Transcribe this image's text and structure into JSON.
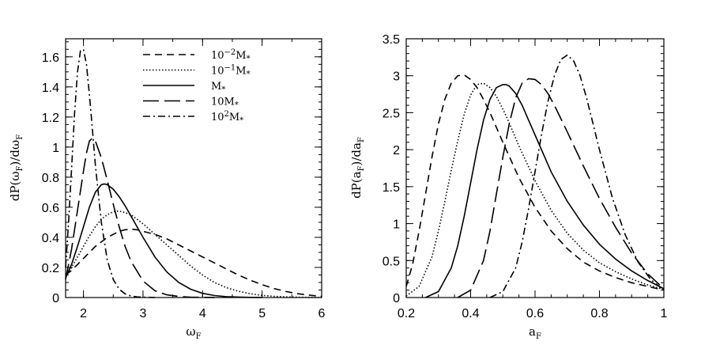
{
  "chart_data": [
    {
      "type": "line",
      "xlabel": "ω_F",
      "ylabel": "dP(ω_F)/dω_F",
      "xlim": [
        1.7,
        6
      ],
      "ylim": [
        0,
        1.72
      ],
      "xticks": [
        2,
        3,
        4,
        5,
        6
      ],
      "xtick_labels": [
        "2",
        "3",
        "4",
        "5",
        "6"
      ],
      "yticks": [
        0,
        0.2,
        0.4,
        0.6,
        0.8,
        1,
        1.2,
        1.4,
        1.6
      ],
      "ytick_labels": [
        "0",
        "0.2",
        "0.4",
        "0.6",
        "0.8",
        "1",
        "1.2",
        "1.4",
        "1.6"
      ],
      "legend_position": "top-right",
      "series": [
        {
          "name": "10⁻²M*",
          "style": "short-dash",
          "x": [
            1.7,
            1.8,
            1.9,
            2.0,
            2.1,
            2.2,
            2.3,
            2.4,
            2.5,
            2.6,
            2.7,
            2.8,
            2.9,
            3.0,
            3.2,
            3.4,
            3.6,
            3.8,
            4.0,
            4.2,
            4.4,
            4.6,
            4.8,
            5.0,
            5.2,
            5.4,
            5.6,
            5.8,
            6.0
          ],
          "values": [
            0.15,
            0.18,
            0.22,
            0.26,
            0.3,
            0.34,
            0.37,
            0.4,
            0.42,
            0.44,
            0.45,
            0.455,
            0.45,
            0.44,
            0.42,
            0.39,
            0.35,
            0.31,
            0.27,
            0.23,
            0.19,
            0.15,
            0.115,
            0.085,
            0.06,
            0.04,
            0.025,
            0.015,
            0.008
          ]
        },
        {
          "name": "10⁻¹M*",
          "style": "dotted",
          "x": [
            1.7,
            1.8,
            1.9,
            2.0,
            2.1,
            2.2,
            2.3,
            2.4,
            2.5,
            2.6,
            2.7,
            2.8,
            2.9,
            3.0,
            3.2,
            3.4,
            3.6,
            3.8,
            4.0,
            4.2,
            4.4,
            4.6,
            4.8,
            5.0,
            5.2,
            5.4,
            5.6,
            5.8,
            6.0
          ],
          "values": [
            0.14,
            0.2,
            0.27,
            0.34,
            0.41,
            0.47,
            0.52,
            0.55,
            0.57,
            0.575,
            0.565,
            0.55,
            0.52,
            0.49,
            0.42,
            0.35,
            0.28,
            0.21,
            0.15,
            0.1,
            0.066,
            0.042,
            0.025,
            0.014,
            0.008,
            0.004,
            0.002,
            0.001,
            0.0005
          ]
        },
        {
          "name": "M*",
          "style": "solid",
          "x": [
            1.7,
            1.8,
            1.9,
            2.0,
            2.1,
            2.2,
            2.3,
            2.35,
            2.4,
            2.5,
            2.6,
            2.7,
            2.8,
            2.9,
            3.0,
            3.2,
            3.4,
            3.6,
            3.8,
            4.0,
            4.2,
            4.4,
            4.6,
            4.8,
            5.0
          ],
          "values": [
            0.13,
            0.22,
            0.34,
            0.47,
            0.6,
            0.7,
            0.75,
            0.755,
            0.75,
            0.72,
            0.67,
            0.61,
            0.54,
            0.47,
            0.4,
            0.27,
            0.17,
            0.1,
            0.055,
            0.028,
            0.013,
            0.006,
            0.003,
            0.001,
            0.0005
          ]
        },
        {
          "name": "10M*",
          "style": "long-dash",
          "x": [
            1.7,
            1.8,
            1.9,
            2.0,
            2.05,
            2.1,
            2.15,
            2.2,
            2.3,
            2.4,
            2.5,
            2.6,
            2.7,
            2.8,
            3.0,
            3.2,
            3.4,
            3.6,
            3.8,
            4.0,
            4.2
          ],
          "values": [
            0.12,
            0.32,
            0.58,
            0.84,
            0.96,
            1.04,
            1.06,
            1.04,
            0.93,
            0.78,
            0.62,
            0.47,
            0.34,
            0.24,
            0.11,
            0.045,
            0.018,
            0.007,
            0.002,
            0.001,
            0.0003
          ]
        },
        {
          "name": "10²M*",
          "style": "dash-dot",
          "x": [
            1.7,
            1.75,
            1.8,
            1.85,
            1.9,
            1.95,
            2.0,
            2.05,
            2.1,
            2.15,
            2.2,
            2.3,
            2.4,
            2.5,
            2.6,
            2.7,
            2.8,
            2.9,
            3.0,
            3.2
          ],
          "values": [
            0.2,
            0.5,
            0.85,
            1.22,
            1.5,
            1.64,
            1.65,
            1.55,
            1.35,
            1.12,
            0.88,
            0.5,
            0.25,
            0.12,
            0.055,
            0.024,
            0.01,
            0.004,
            0.002,
            0.0003
          ]
        }
      ]
    },
    {
      "type": "line",
      "xlabel": "a_F",
      "ylabel": "dP(a_F)/da_F",
      "xlim": [
        0.2,
        1
      ],
      "ylim": [
        0,
        3.5
      ],
      "xticks": [
        0.2,
        0.4,
        0.6,
        0.8,
        1
      ],
      "xtick_labels": [
        "0.2",
        "0.4",
        "0.6",
        "0.8",
        "1"
      ],
      "yticks": [
        0,
        0.5,
        1,
        1.5,
        2,
        2.5,
        3,
        3.5
      ],
      "ytick_labels": [
        "0",
        "0.5",
        "1",
        "1.5",
        "2",
        "2.5",
        "3",
        "3.5"
      ],
      "series": [
        {
          "name": "10⁻²M*",
          "style": "short-dash",
          "x": [
            0.2,
            0.22,
            0.24,
            0.26,
            0.28,
            0.3,
            0.32,
            0.34,
            0.36,
            0.38,
            0.4,
            0.42,
            0.44,
            0.46,
            0.48,
            0.5,
            0.55,
            0.6,
            0.65,
            0.7,
            0.75,
            0.8,
            0.85,
            0.9,
            0.95,
            1.0
          ],
          "values": [
            0.15,
            0.45,
            0.9,
            1.4,
            1.9,
            2.35,
            2.68,
            2.9,
            3.0,
            3.01,
            2.95,
            2.84,
            2.68,
            2.5,
            2.3,
            2.1,
            1.62,
            1.22,
            0.9,
            0.66,
            0.48,
            0.36,
            0.27,
            0.2,
            0.15,
            0.1
          ]
        },
        {
          "name": "10⁻¹M*",
          "style": "dotted",
          "x": [
            0.2,
            0.24,
            0.28,
            0.3,
            0.32,
            0.34,
            0.36,
            0.38,
            0.4,
            0.42,
            0.44,
            0.46,
            0.48,
            0.5,
            0.52,
            0.55,
            0.6,
            0.65,
            0.7,
            0.75,
            0.8,
            0.85,
            0.9,
            0.95,
            1.0
          ],
          "values": [
            0.02,
            0.15,
            0.55,
            0.9,
            1.3,
            1.72,
            2.12,
            2.48,
            2.74,
            2.88,
            2.9,
            2.84,
            2.72,
            2.55,
            2.36,
            2.05,
            1.58,
            1.18,
            0.87,
            0.64,
            0.47,
            0.35,
            0.25,
            0.17,
            0.11
          ]
        },
        {
          "name": "M*",
          "style": "solid",
          "x": [
            0.26,
            0.3,
            0.34,
            0.36,
            0.38,
            0.4,
            0.42,
            0.44,
            0.46,
            0.48,
            0.5,
            0.51,
            0.52,
            0.54,
            0.56,
            0.58,
            0.6,
            0.65,
            0.7,
            0.75,
            0.8,
            0.85,
            0.9,
            0.95,
            1.0
          ],
          "values": [
            0.0,
            0.08,
            0.4,
            0.7,
            1.1,
            1.55,
            2.0,
            2.4,
            2.68,
            2.84,
            2.88,
            2.88,
            2.86,
            2.76,
            2.6,
            2.4,
            2.2,
            1.7,
            1.3,
            0.98,
            0.72,
            0.52,
            0.36,
            0.23,
            0.12
          ]
        },
        {
          "name": "10M*",
          "style": "long-dash",
          "x": [
            0.36,
            0.4,
            0.44,
            0.46,
            0.48,
            0.5,
            0.52,
            0.54,
            0.56,
            0.58,
            0.6,
            0.62,
            0.64,
            0.66,
            0.7,
            0.75,
            0.8,
            0.85,
            0.9,
            0.95,
            1.0
          ],
          "values": [
            0.0,
            0.1,
            0.5,
            0.9,
            1.4,
            1.9,
            2.35,
            2.7,
            2.9,
            2.96,
            2.95,
            2.88,
            2.76,
            2.6,
            2.24,
            1.78,
            1.34,
            0.95,
            0.6,
            0.32,
            0.12
          ]
        },
        {
          "name": "10²M*",
          "style": "dash-dot",
          "x": [
            0.46,
            0.5,
            0.54,
            0.56,
            0.58,
            0.6,
            0.62,
            0.64,
            0.66,
            0.68,
            0.7,
            0.72,
            0.74,
            0.76,
            0.78,
            0.8,
            0.84,
            0.88,
            0.92,
            0.96,
            1.0
          ],
          "values": [
            0.0,
            0.08,
            0.4,
            0.75,
            1.2,
            1.7,
            2.2,
            2.65,
            3.0,
            3.22,
            3.28,
            3.2,
            3.0,
            2.7,
            2.35,
            2.0,
            1.35,
            0.85,
            0.48,
            0.24,
            0.1
          ]
        }
      ]
    }
  ],
  "legend": {
    "entries": [
      {
        "parts": [
          "10",
          "−2",
          "M",
          "*"
        ],
        "style": "short-dash"
      },
      {
        "parts": [
          "10",
          "−1",
          "M",
          "*"
        ],
        "style": "dotted"
      },
      {
        "parts": [
          "",
          "",
          "M",
          "*"
        ],
        "style": "solid"
      },
      {
        "parts": [
          "10",
          "",
          "M",
          "*"
        ],
        "style": "long-dash"
      },
      {
        "parts": [
          "10",
          "2",
          "M",
          "*"
        ],
        "style": "dash-dot"
      }
    ]
  },
  "axis_text": {
    "left": {
      "x_main": "ω",
      "x_sub": "F",
      "y_pre": "dP(ω",
      "y_sub": "F",
      "y_post": ")/dω",
      "y_sub2": "F"
    },
    "right": {
      "x_main": "a",
      "x_sub": "F",
      "y_pre": "dP(a",
      "y_sub": "F",
      "y_post": ")/da",
      "y_sub2": "F"
    }
  }
}
